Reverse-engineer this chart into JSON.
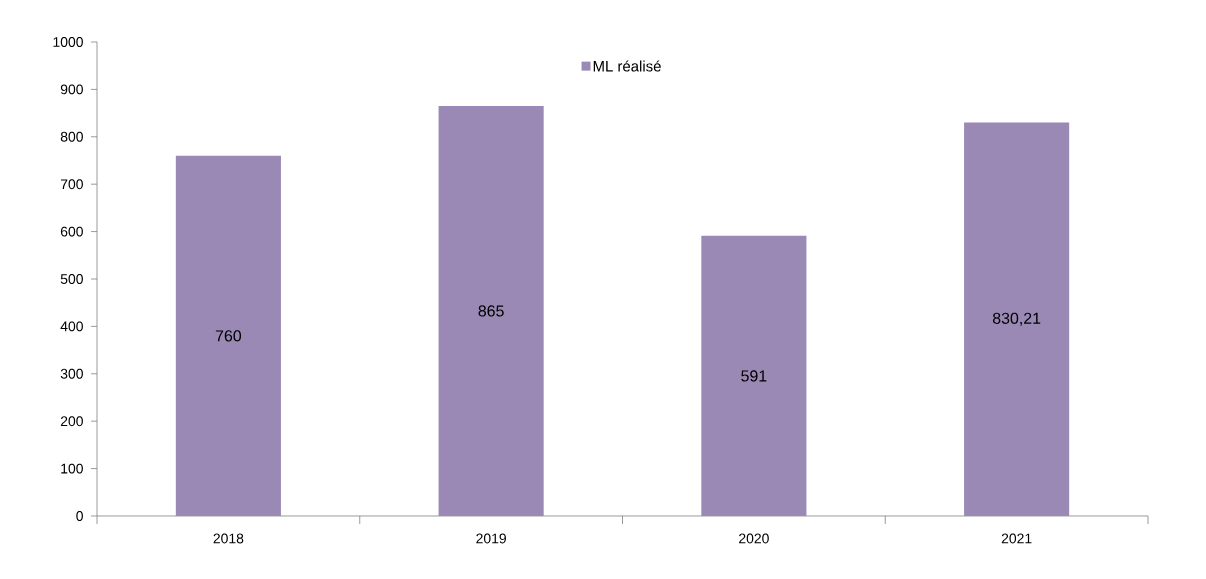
{
  "chart_data": {
    "type": "bar",
    "categories": [
      "2018",
      "2019",
      "2020",
      "2021"
    ],
    "series": [
      {
        "name": "ML réalisé",
        "color": "#9a88b5",
        "values": [
          760,
          865,
          591,
          830.21
        ],
        "value_labels": [
          "760",
          "865",
          "591",
          "830,21"
        ]
      }
    ],
    "ylim": [
      0,
      1000
    ],
    "yticks": [
      0,
      100,
      200,
      300,
      400,
      500,
      600,
      700,
      800,
      900,
      1000
    ],
    "legend": "top"
  }
}
